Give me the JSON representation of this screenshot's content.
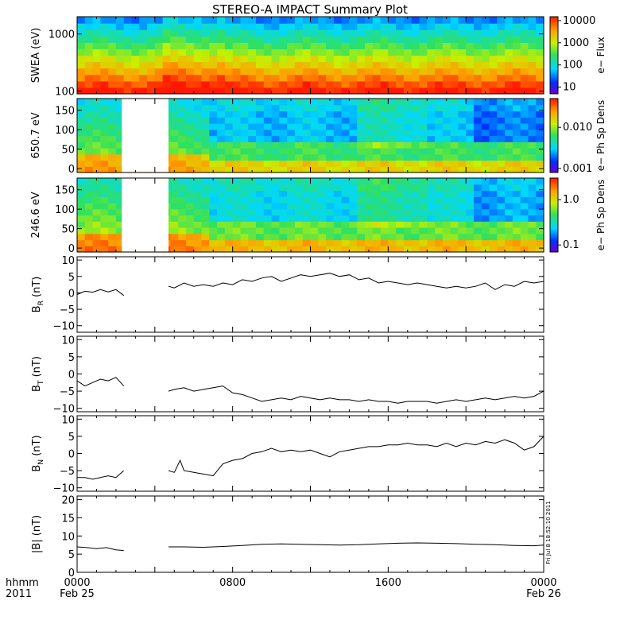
{
  "title": "STEREO-A IMPACT Summary Plot",
  "footer": {
    "left_top": "hhmm",
    "left_bottom": "2011",
    "ticks": [
      {
        "hour": 0,
        "top": "0000",
        "bottom": "Feb 25"
      },
      {
        "hour": 8,
        "top": "0800",
        "bottom": ""
      },
      {
        "hour": 16,
        "top": "1600",
        "bottom": ""
      },
      {
        "hour": 24,
        "top": "0000",
        "bottom": "Feb 26"
      }
    ]
  },
  "stamp": "Fri Jul  8 18:52:10 2011",
  "chart_data": [
    {
      "type": "heatmap",
      "ylabel": "SWEA (eV)",
      "y_scale": "log",
      "ylim": [
        90,
        2000
      ],
      "yticks": [
        {
          "v": 100,
          "t": "100"
        },
        {
          "v": 1000,
          "t": "1000"
        }
      ],
      "colorbar": {
        "label": "e− Flux",
        "scale": "log",
        "range": [
          5,
          15000
        ],
        "ticks": [
          {
            "v": 10,
            "t": "10"
          },
          {
            "v": 100,
            "t": "100"
          },
          {
            "v": 1000,
            "t": "1000"
          },
          {
            "v": 10000,
            "t": "10000"
          }
        ]
      },
      "data_gaps": []
    },
    {
      "type": "heatmap",
      "ylabel": "650.7 eV",
      "y_scale": "linear",
      "ylim": [
        -10,
        180
      ],
      "yticks": [
        {
          "v": 0,
          "t": "0"
        },
        {
          "v": 50,
          "t": "50"
        },
        {
          "v": 100,
          "t": "100"
        },
        {
          "v": 150,
          "t": "150"
        }
      ],
      "colorbar": {
        "label": "e− Ph Sp Dens",
        "scale": "log",
        "range": [
          0.0008,
          0.05
        ],
        "ticks": [
          {
            "v": 0.001,
            "t": "0.001"
          },
          {
            "v": 0.01,
            "t": "0.010"
          }
        ]
      },
      "data_gaps": [
        [
          2.3,
          4.7
        ]
      ]
    },
    {
      "type": "heatmap",
      "ylabel": "246.6 eV",
      "y_scale": "linear",
      "ylim": [
        -10,
        180
      ],
      "yticks": [
        {
          "v": 0,
          "t": "0"
        },
        {
          "v": 50,
          "t": "50"
        },
        {
          "v": 100,
          "t": "100"
        },
        {
          "v": 150,
          "t": "150"
        }
      ],
      "colorbar": {
        "label": "e− Ph Sp Dens",
        "scale": "log",
        "range": [
          0.07,
          3
        ],
        "ticks": [
          {
            "v": 0.1,
            "t": "0.1"
          },
          {
            "v": 1,
            "t": "1.0"
          }
        ]
      },
      "data_gaps": [
        [
          2.3,
          4.7
        ]
      ]
    },
    {
      "type": "line",
      "ylabel_main": "B",
      "ylabel_sub": "R",
      "ylabel_unit": "(nT)",
      "ylim": [
        -12,
        11
      ],
      "yticks": [
        {
          "v": -10,
          "t": "−10"
        },
        {
          "v": -5,
          "t": "−5"
        },
        {
          "v": 0,
          "t": "0"
        },
        {
          "v": 5,
          "t": "5"
        },
        {
          "v": 10,
          "t": "10"
        }
      ],
      "segments": [
        {
          "x": [
            0,
            0.4,
            0.8,
            1.2,
            1.6,
            2.0,
            2.4
          ],
          "y": [
            -0.5,
            0.5,
            0.2,
            1.0,
            0.3,
            1.0,
            -0.8
          ]
        },
        {
          "x": [
            4.7,
            5.0,
            5.5,
            6.0,
            6.5,
            7.0,
            7.5,
            8.0,
            8.5,
            9.0,
            9.5,
            10.0,
            10.5,
            11.0,
            11.5,
            12.0,
            12.5,
            13.0,
            13.5,
            14.0,
            14.5,
            15.0,
            15.5,
            16.0,
            16.5,
            17.0,
            17.5,
            18.0,
            18.5,
            19.0,
            19.5,
            20.0,
            20.5,
            21.0,
            21.5,
            22.0,
            22.5,
            23.0,
            23.5,
            24.0
          ],
          "y": [
            2.0,
            1.5,
            3.0,
            2.0,
            2.5,
            2.0,
            3.0,
            2.5,
            4.0,
            3.5,
            4.5,
            5.0,
            3.5,
            4.5,
            5.5,
            5.0,
            5.5,
            6.0,
            5.0,
            5.5,
            4.0,
            4.5,
            3.0,
            3.5,
            3.0,
            2.5,
            3.0,
            2.5,
            2.0,
            1.5,
            2.0,
            1.5,
            2.0,
            3.0,
            1.0,
            2.5,
            2.0,
            3.5,
            3.0,
            3.5
          ]
        }
      ]
    },
    {
      "type": "line",
      "ylabel_main": "B",
      "ylabel_sub": "T",
      "ylabel_unit": "(nT)",
      "ylim": [
        -11,
        11
      ],
      "yticks": [
        {
          "v": -10,
          "t": "−10"
        },
        {
          "v": -5,
          "t": "−5"
        },
        {
          "v": 0,
          "t": "0"
        },
        {
          "v": 5,
          "t": "5"
        },
        {
          "v": 10,
          "t": "10"
        }
      ],
      "segments": [
        {
          "x": [
            0,
            0.4,
            0.8,
            1.2,
            1.6,
            2.0,
            2.4
          ],
          "y": [
            -2.0,
            -3.5,
            -2.5,
            -1.5,
            -2.0,
            -1.0,
            -3.5
          ]
        },
        {
          "x": [
            4.7,
            5.0,
            5.5,
            6.0,
            6.5,
            7.0,
            7.5,
            8.0,
            8.5,
            9.0,
            9.5,
            10.0,
            10.5,
            11.0,
            11.5,
            12.0,
            12.5,
            13.0,
            13.5,
            14.0,
            14.5,
            15.0,
            15.5,
            16.0,
            16.5,
            17.0,
            17.5,
            18.0,
            18.5,
            19.0,
            19.5,
            20.0,
            20.5,
            21.0,
            21.5,
            22.0,
            22.5,
            23.0,
            23.5,
            24.0
          ],
          "y": [
            -5.0,
            -4.5,
            -4.0,
            -5.0,
            -4.5,
            -4.0,
            -3.5,
            -5.5,
            -6.0,
            -7.0,
            -8.0,
            -7.5,
            -7.0,
            -7.5,
            -6.5,
            -7.0,
            -7.5,
            -7.0,
            -7.5,
            -7.5,
            -8.0,
            -7.5,
            -8.0,
            -8.0,
            -8.5,
            -8.0,
            -8.0,
            -8.0,
            -8.5,
            -8.0,
            -7.5,
            -8.0,
            -7.5,
            -7.0,
            -7.5,
            -7.0,
            -6.5,
            -7.0,
            -6.5,
            -5.0
          ]
        }
      ]
    },
    {
      "type": "line",
      "ylabel_main": "B",
      "ylabel_sub": "N",
      "ylabel_unit": "(nT)",
      "ylim": [
        -11,
        11
      ],
      "yticks": [
        {
          "v": -10,
          "t": "−10"
        },
        {
          "v": -5,
          "t": "−5"
        },
        {
          "v": 0,
          "t": "0"
        },
        {
          "v": 5,
          "t": "5"
        },
        {
          "v": 10,
          "t": "10"
        }
      ],
      "segments": [
        {
          "x": [
            0,
            0.4,
            0.8,
            1.2,
            1.6,
            2.0,
            2.4
          ],
          "y": [
            -7.0,
            -7.0,
            -7.5,
            -7.0,
            -6.5,
            -7.0,
            -5.0
          ]
        },
        {
          "x": [
            4.7,
            5.0,
            5.3,
            5.5,
            6.0,
            6.5,
            7.0,
            7.5,
            8.0,
            8.5,
            9.0,
            9.5,
            10.0,
            10.5,
            11.0,
            11.5,
            12.0,
            12.5,
            13.0,
            13.5,
            14.0,
            14.5,
            15.0,
            15.5,
            16.0,
            16.5,
            17.0,
            17.5,
            18.0,
            18.5,
            19.0,
            19.5,
            20.0,
            20.5,
            21.0,
            21.5,
            22.0,
            22.5,
            23.0,
            23.5,
            24.0
          ],
          "y": [
            -5.0,
            -5.5,
            -2.0,
            -5.0,
            -5.5,
            -6.0,
            -6.5,
            -3.0,
            -2.0,
            -1.5,
            0.0,
            0.5,
            1.5,
            0.5,
            1.0,
            0.5,
            1.0,
            0.0,
            -1.0,
            0.5,
            1.0,
            1.5,
            2.0,
            2.0,
            2.5,
            2.5,
            3.0,
            2.5,
            2.5,
            2.0,
            3.0,
            2.0,
            3.0,
            2.5,
            3.5,
            3.0,
            4.0,
            3.0,
            1.0,
            2.0,
            5.0
          ]
        }
      ]
    },
    {
      "type": "line",
      "ylabel_main": "|B|",
      "ylabel_sub": "",
      "ylabel_unit": "(nT)",
      "ylim": [
        0,
        21
      ],
      "yticks": [
        {
          "v": 0,
          "t": "0"
        },
        {
          "v": 5,
          "t": "5"
        },
        {
          "v": 10,
          "t": "10"
        },
        {
          "v": 15,
          "t": "15"
        },
        {
          "v": 20,
          "t": "20"
        }
      ],
      "segments": [
        {
          "x": [
            0,
            0.5,
            1.0,
            1.5,
            2.0,
            2.4
          ],
          "y": [
            7.0,
            6.8,
            6.5,
            6.8,
            6.2,
            6.0
          ]
        },
        {
          "x": [
            4.7,
            5.5,
            6.5,
            7.5,
            8.5,
            9.5,
            10.5,
            11.5,
            12.5,
            13.5,
            14.5,
            15.5,
            16.5,
            17.5,
            18.5,
            19.5,
            20.5,
            21.5,
            22.5,
            23.5,
            24.0
          ],
          "y": [
            7.0,
            7.0,
            6.9,
            7.1,
            7.4,
            7.7,
            7.8,
            7.7,
            7.6,
            7.5,
            7.6,
            7.8,
            8.0,
            8.1,
            8.0,
            7.9,
            7.7,
            7.6,
            7.4,
            7.3,
            7.5
          ]
        }
      ]
    }
  ]
}
